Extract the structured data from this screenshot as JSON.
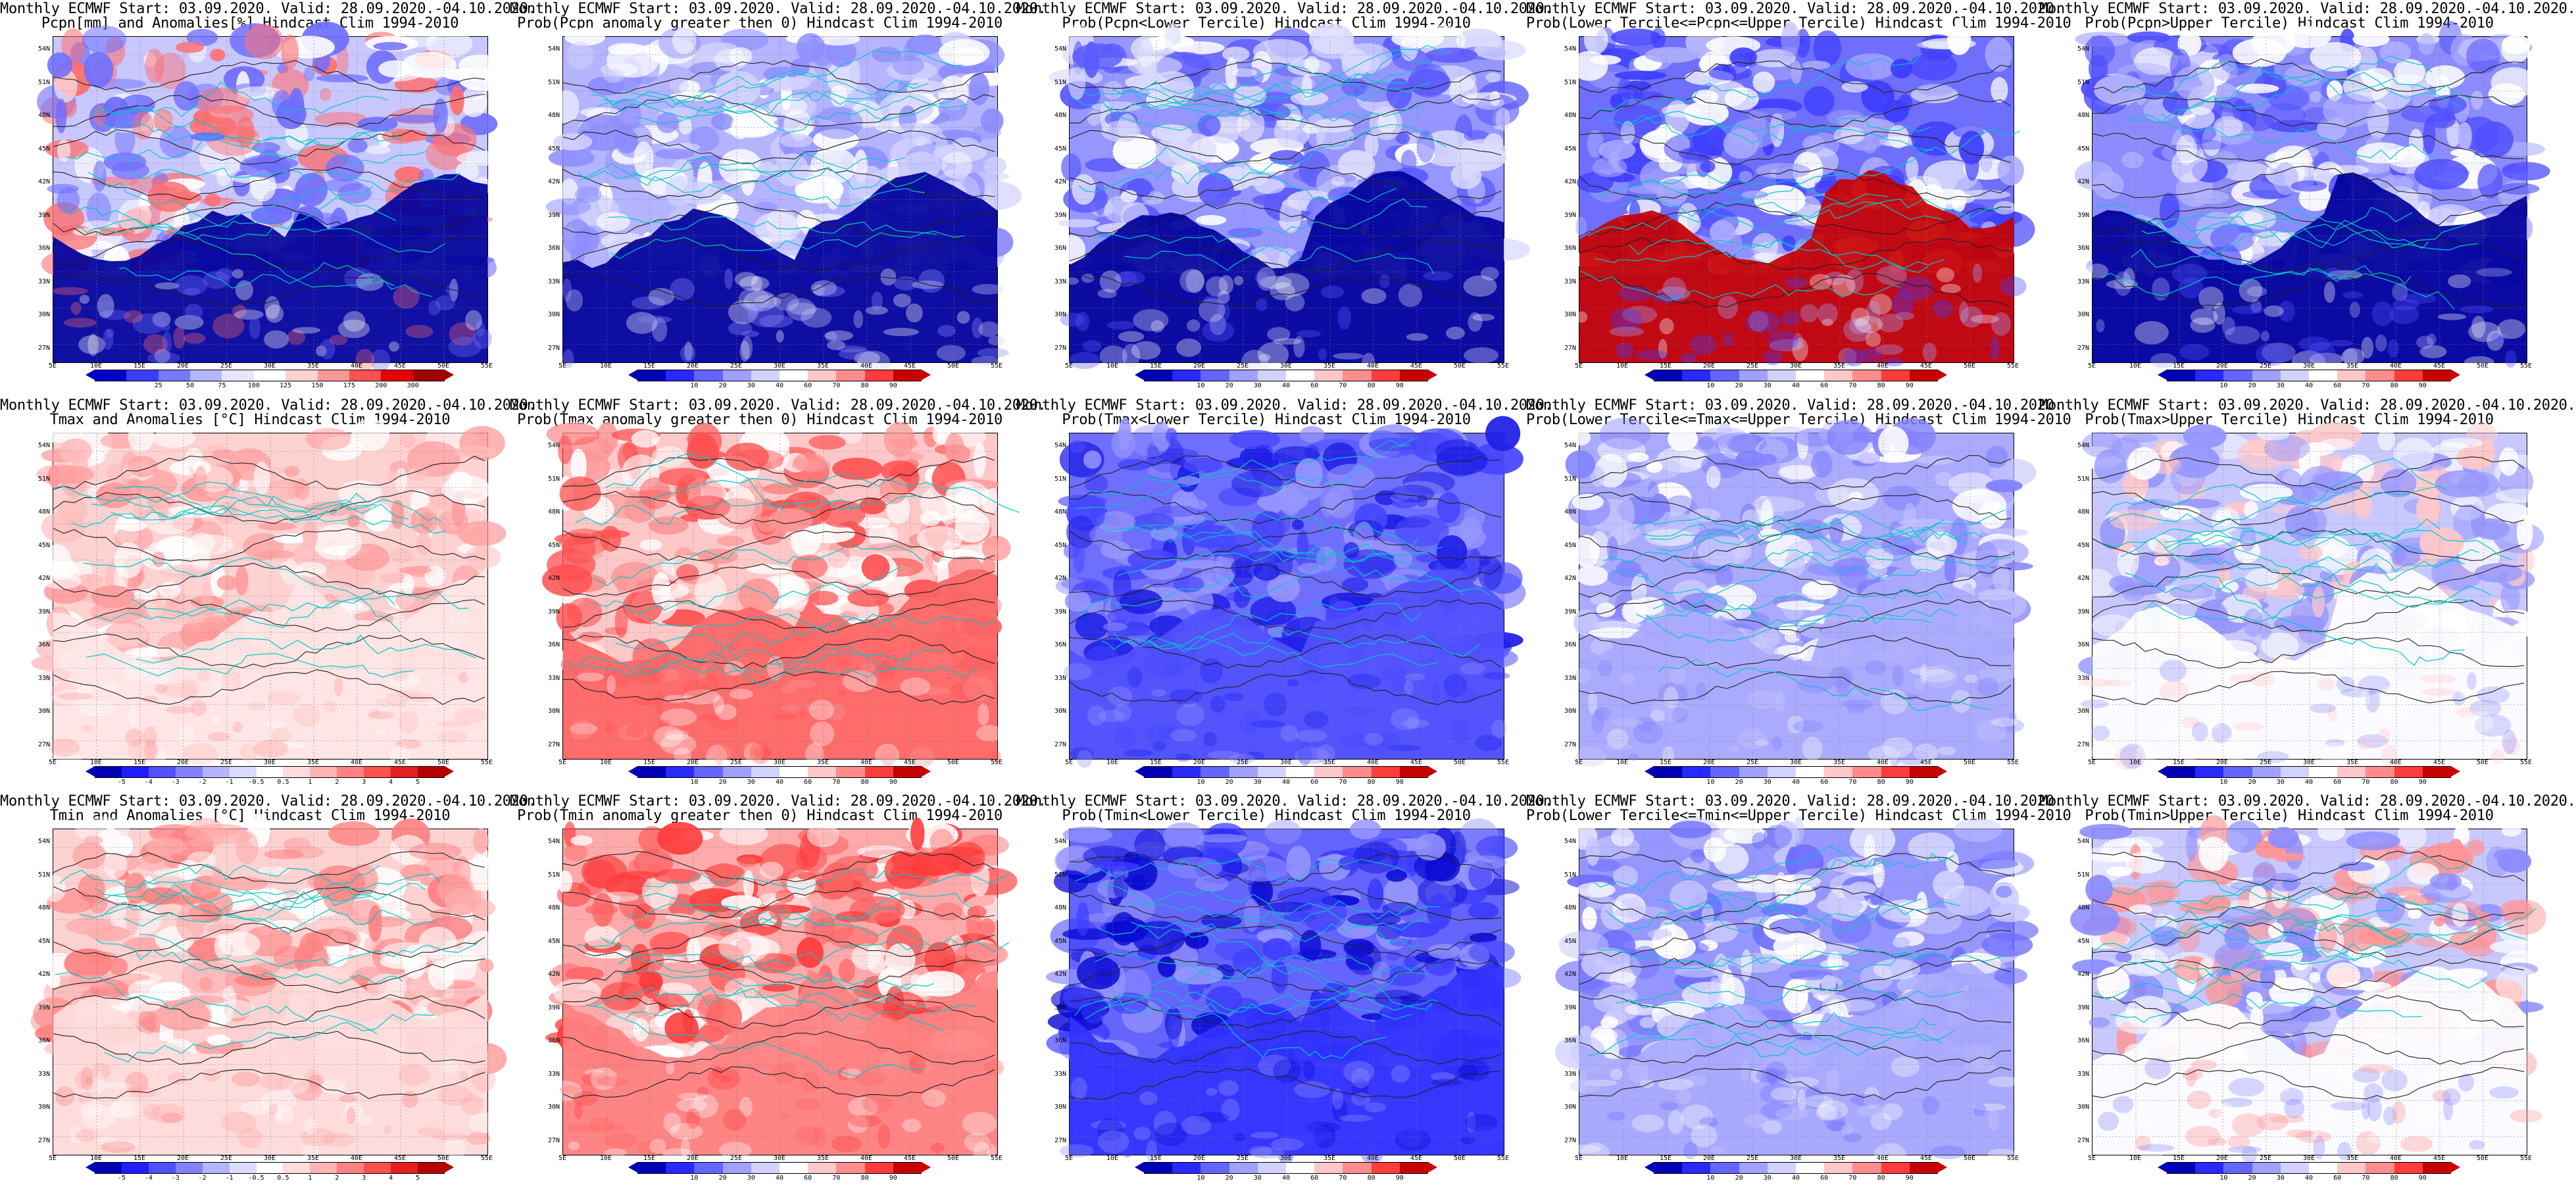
{
  "titles": [
    [
      "Monthly ECMWF Start: 03.09.2020. Valid: 28.09.2020.-04.10.2020.",
      "Pcpn[mm] and Anomalies[%] Hindcast Clim 1994-2010"
    ],
    [
      "Monthly ECMWF Start: 03.09.2020. Valid: 28.09.2020.-04.10.2020.",
      "Prob(Pcpn anomaly greater then 0) Hindcast Clim 1994-2010"
    ],
    [
      "Monthly ECMWF Start: 03.09.2020. Valid: 28.09.2020.-04.10.2020.",
      "Prob(Pcpn<Lower Tercile) Hindcast Clim 1994-2010"
    ],
    [
      "Monthly ECMWF Start: 03.09.2020. Valid: 28.09.2020.-04.10.2020.",
      "Prob(Lower Tercile<=Pcpn<=Upper Tercile) Hindcast Clim 1994-2010"
    ],
    [
      "Monthly ECMWF Start: 03.09.2020. Valid: 28.09.2020.-04.10.2020.",
      "Prob(Pcpn>Upper Tercile) Hindcast Clim 1994-2010"
    ],
    [
      "Monthly ECMWF Start: 03.09.2020. Valid: 28.09.2020.-04.10.2020.",
      "Tmax and Anomalies [°C] Hindcast Clim 1994-2010"
    ],
    [
      "Monthly ECMWF Start: 03.09.2020. Valid: 28.09.2020.-04.10.2020.",
      "Prob(Tmax anomaly greater then 0) Hindcast Clim 1994-2010"
    ],
    [
      "Monthly ECMWF Start: 03.09.2020. Valid: 28.09.2020.-04.10.2020.",
      "Prob(Tmax<Lower Tercile) Hindcast Clim 1994-2010"
    ],
    [
      "Monthly ECMWF Start: 03.09.2020. Valid: 28.09.2020.-04.10.2020.",
      "Prob(Lower Tercile<=Tmax<=Upper Tercile) Hindcast Clim 1994-2010"
    ],
    [
      "Monthly ECMWF Start: 03.09.2020. Valid: 28.09.2020.-04.10.2020.",
      "Prob(Tmax>Upper Tercile) Hindcast Clim 1994-2010"
    ],
    [
      "Monthly ECMWF Start: 03.09.2020. Valid: 28.09.2020.-04.10.2020.",
      "Tmin and Anomalies [°C] Hindcast Clim 1994-2010"
    ],
    [
      "Monthly ECMWF Start: 03.09.2020. Valid: 28.09.2020.-04.10.2020.",
      "Prob(Tmin anomaly greater then 0) Hindcast Clim 1994-2010"
    ],
    [
      "Monthly ECMWF Start: 03.09.2020. Valid: 28.09.2020.-04.10.2020.",
      "Prob(Tmin<Lower Tercile) Hindcast Clim 1994-2010"
    ],
    [
      "Monthly ECMWF Start: 03.09.2020. Valid: 28.09.2020.-04.10.2020.",
      "Prob(Lower Tercile<=Tmin<=Upper Tercile) Hindcast Clim 1994-2010"
    ],
    [
      "Monthly ECMWF Start: 03.09.2020. Valid: 28.09.2020.-04.10.2020.",
      "Prob(Tmin>Upper Tercile) Hindcast Clim 1994-2010"
    ]
  ],
  "lat_labels": [
    "54N",
    "51N",
    "48N",
    "45N",
    "42N",
    "39N",
    "36N",
    "33N",
    "30N",
    "27N"
  ],
  "lon_labels": [
    "5E",
    "10E",
    "15E",
    "20E",
    "25E",
    "30E",
    "35E",
    "40E",
    "45E",
    "50E",
    "55E"
  ],
  "colorbars": {
    "pcpn_anom": {
      "ticks": [
        "25",
        "50",
        "75",
        "100",
        "125",
        "150",
        "175",
        "200",
        "300"
      ],
      "colors": [
        "#0000c8",
        "#3c3cff",
        "#7878ff",
        "#b4b4ff",
        "#e6e6ff",
        "#ffffff",
        "#ffd2d2",
        "#ff9696",
        "#ff5050",
        "#e60000",
        "#a00000"
      ]
    },
    "prob": {
      "ticks": [
        "10",
        "20",
        "30",
        "40",
        "60",
        "70",
        "80",
        "90"
      ],
      "colors": [
        "#0000b4",
        "#2828ff",
        "#6464ff",
        "#a0a0ff",
        "#d2d2ff",
        "#ffffff",
        "#ffc8c8",
        "#ff8c8c",
        "#ff3c3c",
        "#c80000"
      ]
    },
    "temp_anom": {
      "ticks": [
        "-5",
        "-4",
        "-3",
        "-2",
        "-1",
        "-0.5",
        "0.5",
        "1",
        "2",
        "3",
        "4",
        "5"
      ],
      "colors": [
        "#0000b4",
        "#1e1eff",
        "#5050ff",
        "#8282ff",
        "#b4b4ff",
        "#dcdcff",
        "#ffffff",
        "#ffdcdc",
        "#ffb4b4",
        "#ff8282",
        "#ff5050",
        "#e61e1e",
        "#b40000"
      ]
    }
  },
  "panel_colorbars": [
    "pcpn_anom",
    "prob",
    "prob",
    "prob",
    "prob",
    "temp_anom",
    "prob",
    "prob",
    "prob",
    "prob",
    "temp_anom",
    "prob",
    "prob",
    "prob",
    "prob"
  ],
  "panel_themes": [
    {
      "base": "#c8c8ff",
      "mix": [
        "#6e6eff",
        "#ffffff",
        "#ff6e6e"
      ],
      "south": "#00009b"
    },
    {
      "base": "#b4b4ff",
      "mix": [
        "#d2d2ff",
        "#ffffff",
        "#8c8cff"
      ],
      "south": "#00009b"
    },
    {
      "base": "#9696ff",
      "mix": [
        "#ffffff",
        "#5a5aff",
        "#dcdcff"
      ],
      "south": "#00009b"
    },
    {
      "base": "#6e6eff",
      "mix": [
        "#ffffff",
        "#aaaaff",
        "#3c3cff"
      ],
      "south": "#c80000"
    },
    {
      "base": "#8c8cff",
      "mix": [
        "#ffffff",
        "#b4b4ff",
        "#5050ff"
      ],
      "south": "#00009b"
    },
    {
      "base": "#ffd2d2",
      "mix": [
        "#ffffff",
        "#ffbebe",
        "#ff9b9b"
      ],
      "south": "#ffe6e6"
    },
    {
      "base": "#ffc8c8",
      "mix": [
        "#ffffff",
        "#ff9696",
        "#ff5050"
      ],
      "south": "#ff6464"
    },
    {
      "base": "#6e6eff",
      "mix": [
        "#4646ff",
        "#9696ff",
        "#1e1ee6"
      ],
      "south": "#5050ff"
    },
    {
      "base": "#aaaaff",
      "mix": [
        "#ffffff",
        "#8282ff",
        "#c8c8ff"
      ],
      "south": "#aaaaff"
    },
    {
      "base": "#c8c8ff",
      "mix": [
        "#ffffff",
        "#9696ff",
        "#ffc8c8"
      ],
      "south": "#ffffff"
    },
    {
      "base": "#ffd2d2",
      "mix": [
        "#ffffff",
        "#ffaaaa",
        "#ff8282"
      ],
      "south": "#ffdcdc"
    },
    {
      "base": "#ffaaaa",
      "mix": [
        "#ffffff",
        "#ff6464",
        "#ff3c3c"
      ],
      "south": "#ff8282"
    },
    {
      "base": "#6464ff",
      "mix": [
        "#3c3cff",
        "#9696ff",
        "#0a0ad2"
      ],
      "south": "#3232ff"
    },
    {
      "base": "#9696ff",
      "mix": [
        "#ffffff",
        "#6e6eff",
        "#c8c8ff"
      ],
      "south": "#aaaaff"
    },
    {
      "base": "#c8c8ff",
      "mix": [
        "#ffffff",
        "#8c8cff",
        "#ff9696"
      ],
      "south": "#ffffff"
    }
  ]
}
